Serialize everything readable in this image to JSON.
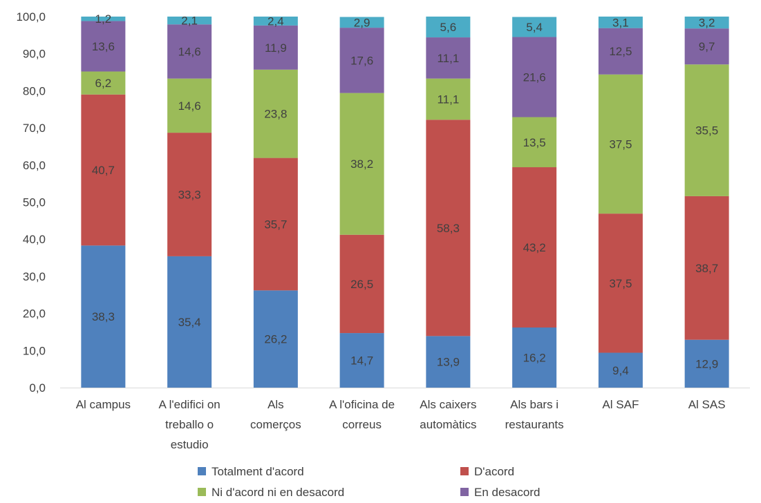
{
  "chart_data": {
    "type": "bar",
    "stacked": true,
    "categories": [
      [
        "Al campus"
      ],
      [
        "A l'edifici on",
        "treballo o",
        "estudio"
      ],
      [
        "Als",
        "comerços"
      ],
      [
        "A l'oficina de",
        "correus"
      ],
      [
        "Als caixers",
        "automàtics"
      ],
      [
        "Als bars i",
        "restaurants"
      ],
      [
        "Al SAF"
      ],
      [
        "Al SAS"
      ]
    ],
    "series": [
      {
        "name": "Totalment d'acord",
        "color": "#4F81BD",
        "values": [
          38.3,
          35.4,
          26.2,
          14.7,
          13.9,
          16.2,
          9.4,
          12.9
        ],
        "labels": [
          "38,3",
          "35,4",
          "26,2",
          "14,7",
          "13,9",
          "16,2",
          "9,4",
          "12,9"
        ]
      },
      {
        "name": "D'acord",
        "color": "#C0504D",
        "values": [
          40.7,
          33.3,
          35.7,
          26.5,
          58.3,
          43.2,
          37.5,
          38.7
        ],
        "labels": [
          "40,7",
          "33,3",
          "35,7",
          "26,5",
          "58,3",
          "43,2",
          "37,5",
          "38,7"
        ]
      },
      {
        "name": "Ni d'acord ni en desacord",
        "color": "#9BBB59",
        "values": [
          6.2,
          14.6,
          23.8,
          38.2,
          11.1,
          13.5,
          37.5,
          35.5
        ],
        "labels": [
          "6,2",
          "14,6",
          "23,8",
          "38,2",
          "11,1",
          "13,5",
          "37,5",
          "35,5"
        ]
      },
      {
        "name": "En desacord",
        "color": "#8064A2",
        "values": [
          13.6,
          14.6,
          11.9,
          17.6,
          11.1,
          21.6,
          12.5,
          9.7
        ],
        "labels": [
          "13,6",
          "14,6",
          "11,9",
          "17,6",
          "11,1",
          "21,6",
          "12,5",
          "9,7"
        ]
      },
      {
        "name": "",
        "color": "#4BACC6",
        "values": [
          1.2,
          2.1,
          2.4,
          2.9,
          5.6,
          5.4,
          3.1,
          3.2
        ],
        "labels": [
          "1,2",
          "2,1",
          "2,4",
          "2,9",
          "5,6",
          "5,4",
          "3,1",
          "3,2"
        ]
      }
    ],
    "ylim": [
      0,
      100
    ],
    "yticks": [
      "0,0",
      "10,0",
      "20,0",
      "30,0",
      "40,0",
      "50,0",
      "60,0",
      "70,0",
      "80,0",
      "90,0",
      "100,0"
    ],
    "grid": false,
    "legend_position": "bottom",
    "legend_visible_series": 4
  }
}
